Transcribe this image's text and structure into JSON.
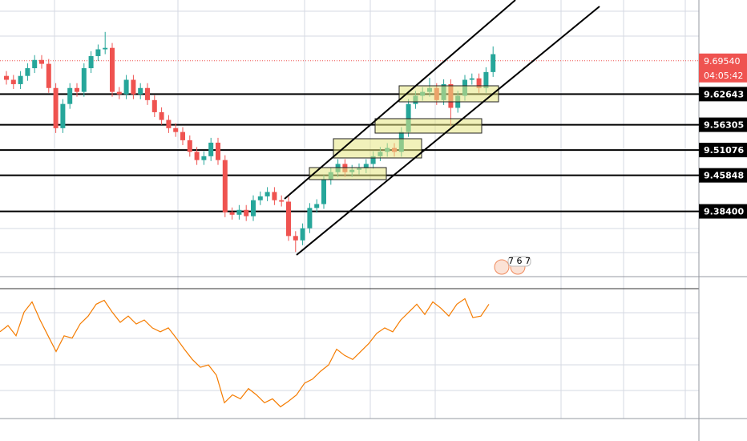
{
  "chart_data": {
    "type": "candlestick",
    "ylim": [
      9.249,
      9.821
    ],
    "up_color": "#26a69a",
    "down_color": "#ef5350",
    "level_color": "#000000",
    "open": [
      9.664,
      9.656,
      9.647,
      9.664,
      9.68,
      9.697,
      9.689,
      9.639,
      9.556,
      9.606,
      9.639,
      9.631,
      9.68,
      9.705,
      9.719,
      9.722,
      9.631,
      9.626,
      9.656,
      9.626,
      9.639,
      9.614,
      9.589,
      9.573,
      9.556,
      9.548,
      9.531,
      9.507,
      9.49,
      9.498,
      9.526,
      9.49,
      9.382,
      9.377,
      9.387,
      9.374,
      9.407,
      9.415,
      9.424,
      9.407,
      9.404,
      9.333,
      9.324,
      9.349,
      9.391,
      9.399,
      9.449,
      9.465,
      9.482,
      9.465,
      9.47,
      9.473,
      9.482,
      9.498,
      9.507,
      9.515,
      9.507,
      9.548,
      9.606,
      9.623,
      9.631,
      9.639,
      9.614,
      9.647,
      9.598,
      9.623,
      9.656,
      9.659,
      9.639,
      9.672
    ],
    "high": [
      9.674,
      9.666,
      9.674,
      9.69,
      9.707,
      9.707,
      9.699,
      9.649,
      9.616,
      9.649,
      9.649,
      9.69,
      9.715,
      9.729,
      9.755,
      9.732,
      9.641,
      9.666,
      9.666,
      9.649,
      9.649,
      9.624,
      9.599,
      9.583,
      9.566,
      9.558,
      9.541,
      9.517,
      9.508,
      9.536,
      9.536,
      9.5,
      9.392,
      9.397,
      9.397,
      9.417,
      9.425,
      9.434,
      9.434,
      9.417,
      9.414,
      9.343,
      9.359,
      9.401,
      9.409,
      9.459,
      9.475,
      9.492,
      9.492,
      9.48,
      9.483,
      9.492,
      9.508,
      9.517,
      9.525,
      9.525,
      9.558,
      9.616,
      9.633,
      9.641,
      9.66,
      9.649,
      9.657,
      9.657,
      9.633,
      9.666,
      9.669,
      9.669,
      9.682,
      9.725
    ],
    "low": [
      9.646,
      9.637,
      9.637,
      9.654,
      9.67,
      9.679,
      9.629,
      9.546,
      9.546,
      9.596,
      9.621,
      9.621,
      9.67,
      9.695,
      9.709,
      9.621,
      9.616,
      9.616,
      9.616,
      9.616,
      9.604,
      9.579,
      9.563,
      9.546,
      9.538,
      9.521,
      9.497,
      9.48,
      9.48,
      9.488,
      9.48,
      9.372,
      9.367,
      9.367,
      9.364,
      9.364,
      9.397,
      9.405,
      9.397,
      9.394,
      9.323,
      9.3,
      9.314,
      9.339,
      9.381,
      9.389,
      9.439,
      9.455,
      9.455,
      9.455,
      9.46,
      9.463,
      9.472,
      9.488,
      9.497,
      9.497,
      9.497,
      9.538,
      9.596,
      9.613,
      9.621,
      9.604,
      9.604,
      9.56,
      9.588,
      9.613,
      9.646,
      9.629,
      9.629,
      9.662
    ],
    "close": [
      9.656,
      9.647,
      9.664,
      9.68,
      9.697,
      9.689,
      9.639,
      9.556,
      9.606,
      9.639,
      9.631,
      9.68,
      9.705,
      9.719,
      9.722,
      9.631,
      9.626,
      9.656,
      9.626,
      9.639,
      9.614,
      9.589,
      9.573,
      9.556,
      9.548,
      9.531,
      9.507,
      9.49,
      9.498,
      9.526,
      9.49,
      9.382,
      9.377,
      9.387,
      9.374,
      9.407,
      9.415,
      9.424,
      9.407,
      9.404,
      9.333,
      9.324,
      9.349,
      9.391,
      9.399,
      9.449,
      9.465,
      9.482,
      9.465,
      9.47,
      9.473,
      9.482,
      9.498,
      9.507,
      9.515,
      9.507,
      9.548,
      9.606,
      9.623,
      9.631,
      9.639,
      9.614,
      9.647,
      9.598,
      9.623,
      9.656,
      9.659,
      9.639,
      9.672,
      9.709
    ],
    "yticks": [
      {
        "value": 9.62643,
        "label": "9.62643"
      },
      {
        "value": 9.56305,
        "label": "9.56305"
      },
      {
        "value": 9.51076,
        "label": "9.51076"
      },
      {
        "value": 9.45848,
        "label": "9.45848"
      },
      {
        "value": 9.384,
        "label": "9.38400"
      }
    ],
    "current_price": {
      "value": 9.6954,
      "label": "9.69540",
      "color": "#ef5350"
    },
    "countdown": "04:05:42",
    "badge_text": "7 6 7",
    "indicator": {
      "color": "#f57c00",
      "ylim": [
        0,
        180
      ],
      "values": [
        110,
        118,
        105,
        135,
        148,
        125,
        105,
        85,
        105,
        102,
        120,
        130,
        145,
        150,
        135,
        122,
        130,
        120,
        125,
        115,
        110,
        115,
        102,
        88,
        75,
        65,
        68,
        55,
        20,
        30,
        25,
        38,
        30,
        20,
        25,
        15,
        22,
        30,
        45,
        50,
        60,
        68,
        88,
        80,
        75,
        85,
        95,
        108,
        115,
        110,
        125,
        135,
        145,
        132,
        148,
        140,
        130,
        145,
        152,
        128,
        130,
        145
      ]
    }
  }
}
